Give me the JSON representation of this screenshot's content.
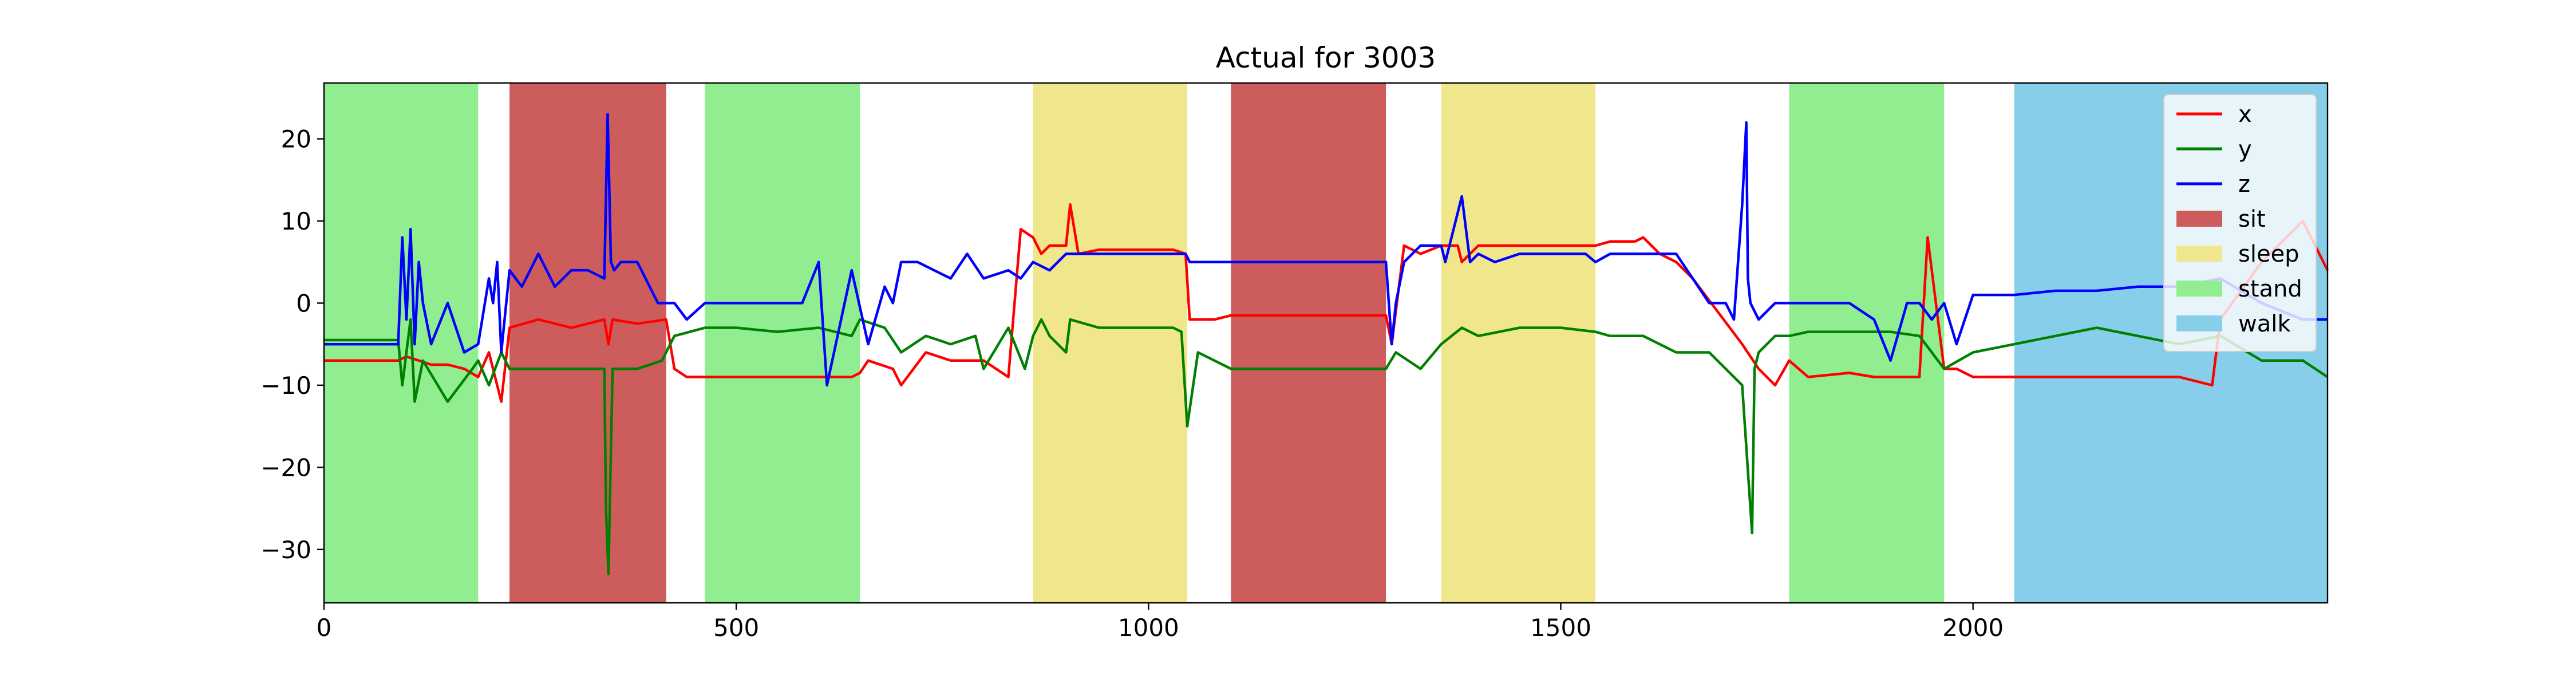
{
  "chart_data": {
    "type": "line",
    "title": "Actual for 3003",
    "xlabel": "",
    "ylabel": "",
    "xlim": [
      0,
      2430
    ],
    "ylim": [
      -36.5,
      26.8
    ],
    "xticks": [
      0,
      500,
      1000,
      1500,
      2000
    ],
    "xtick_labels": [
      "0",
      "500",
      "1000",
      "1500",
      "2000"
    ],
    "yticks": [
      20,
      10,
      0,
      -10,
      -20,
      -30
    ],
    "ytick_labels": [
      "20",
      "10",
      "0",
      "−10",
      "−20",
      "−30"
    ],
    "grid": false,
    "legend_position": "top-right",
    "legend": [
      {
        "label": "x",
        "kind": "line",
        "color": "#ff0000"
      },
      {
        "label": "y",
        "kind": "line",
        "color": "#008000"
      },
      {
        "label": "z",
        "kind": "line",
        "color": "#0000ff"
      },
      {
        "label": "sit",
        "kind": "patch",
        "color": "#cd5c5c"
      },
      {
        "label": "sleep",
        "kind": "patch",
        "color": "#f0e68c"
      },
      {
        "label": "stand",
        "kind": "patch",
        "color": "#90ee90"
      },
      {
        "label": "walk",
        "kind": "patch",
        "color": "#87ceeb"
      }
    ],
    "activity_spans": [
      {
        "activity": "stand",
        "start": 0,
        "end": 187
      },
      {
        "activity": "sit",
        "start": 225,
        "end": 415
      },
      {
        "activity": "stand",
        "start": 462,
        "end": 650
      },
      {
        "activity": "sleep",
        "start": 860,
        "end": 1047
      },
      {
        "activity": "sit",
        "start": 1100,
        "end": 1288
      },
      {
        "activity": "sleep",
        "start": 1355,
        "end": 1542
      },
      {
        "activity": "stand",
        "start": 1777,
        "end": 1965
      },
      {
        "activity": "walk",
        "start": 2050,
        "end": 2430
      }
    ],
    "series": [
      {
        "name": "x",
        "color": "#ff0000",
        "x": [
          0,
          90,
          100,
          115,
          130,
          150,
          170,
          187,
          200,
          215,
          225,
          260,
          300,
          340,
          345,
          350,
          380,
          415,
          425,
          440,
          462,
          500,
          550,
          600,
          640,
          650,
          660,
          690,
          700,
          730,
          760,
          800,
          830,
          845,
          860,
          870,
          880,
          900,
          905,
          915,
          940,
          1000,
          1030,
          1045,
          1050,
          1080,
          1100,
          1200,
          1288,
          1295,
          1310,
          1330,
          1355,
          1375,
          1380,
          1400,
          1450,
          1500,
          1542,
          1560,
          1590,
          1600,
          1610,
          1620,
          1640,
          1660,
          1690,
          1720,
          1740,
          1760,
          1777,
          1800,
          1850,
          1880,
          1900,
          1935,
          1945,
          1965,
          1980,
          2000,
          2050,
          2100,
          2150,
          2200,
          2250,
          2290,
          2300,
          2350,
          2400,
          2410,
          2430
        ],
        "y": [
          -7,
          -7,
          -6.5,
          -7,
          -7.5,
          -7.5,
          -8,
          -9,
          -6,
          -12,
          -3,
          -2,
          -3,
          -2,
          -5,
          -2,
          -2.5,
          -2,
          -8,
          -9,
          -9,
          -9,
          -9,
          -9,
          -9,
          -8.5,
          -7,
          -8,
          -10,
          -6,
          -7,
          -7,
          -9,
          9,
          8,
          6,
          7,
          7,
          12,
          6,
          6.5,
          6.5,
          6.5,
          6,
          -2,
          -2,
          -1.5,
          -1.5,
          -1.5,
          -5,
          7,
          6,
          7,
          7,
          5,
          7,
          7,
          7,
          7,
          7.5,
          7.5,
          8,
          7,
          6,
          5,
          3,
          -1,
          -5,
          -8,
          -10,
          -7,
          -9,
          -8.5,
          -9,
          -9,
          -9,
          8,
          -8,
          -8,
          -9,
          -9,
          -9,
          -9,
          -9,
          -9,
          -10,
          -2,
          5,
          10,
          8,
          4
        ],
        "legend": "x"
      },
      {
        "name": "y",
        "color": "#008000",
        "x": [
          0,
          90,
          95,
          105,
          110,
          120,
          150,
          180,
          187,
          200,
          215,
          225,
          250,
          300,
          340,
          342,
          345,
          350,
          380,
          410,
          415,
          425,
          462,
          500,
          550,
          600,
          640,
          650,
          680,
          700,
          730,
          760,
          790,
          800,
          830,
          850,
          860,
          870,
          880,
          900,
          905,
          940,
          1000,
          1030,
          1040,
          1047,
          1060,
          1100,
          1200,
          1288,
          1300,
          1330,
          1355,
          1380,
          1400,
          1450,
          1500,
          1542,
          1560,
          1600,
          1640,
          1680,
          1700,
          1720,
          1732,
          1735,
          1740,
          1760,
          1777,
          1800,
          1850,
          1900,
          1935,
          1965,
          2000,
          2050,
          2100,
          2150,
          2200,
          2250,
          2300,
          2350,
          2400,
          2430
        ],
        "y": [
          -4.5,
          -4.5,
          -10,
          -2,
          -12,
          -7,
          -12,
          -8,
          -7,
          -10,
          -6,
          -8,
          -8,
          -8,
          -8,
          -25,
          -33,
          -8,
          -8,
          -7,
          -6,
          -4,
          -3,
          -3,
          -3.5,
          -3,
          -4,
          -2,
          -3,
          -6,
          -4,
          -5,
          -4,
          -8,
          -3,
          -8,
          -4,
          -2,
          -4,
          -6,
          -2,
          -3,
          -3,
          -3,
          -3.5,
          -15,
          -6,
          -8,
          -8,
          -8,
          -6,
          -8,
          -5,
          -3,
          -4,
          -3,
          -3,
          -3.5,
          -4,
          -4,
          -6,
          -6,
          -8,
          -10,
          -28,
          -8,
          -6,
          -4,
          -4,
          -3.5,
          -3.5,
          -3.5,
          -4,
          -8,
          -6,
          -5,
          -4,
          -3,
          -4,
          -5,
          -4,
          -7,
          -7,
          -9
        ]
      },
      {
        "name": "z",
        "color": "#0000ff",
        "x": [
          0,
          90,
          95,
          100,
          105,
          110,
          115,
          120,
          130,
          150,
          170,
          187,
          200,
          205,
          210,
          215,
          225,
          240,
          260,
          280,
          300,
          320,
          340,
          344,
          348,
          352,
          360,
          380,
          405,
          415,
          425,
          440,
          462,
          500,
          550,
          580,
          600,
          610,
          640,
          660,
          680,
          690,
          700,
          720,
          740,
          760,
          780,
          800,
          830,
          845,
          860,
          880,
          900,
          920,
          1000,
          1030,
          1045,
          1050,
          1080,
          1100,
          1200,
          1240,
          1288,
          1295,
          1300,
          1310,
          1330,
          1355,
          1360,
          1380,
          1390,
          1400,
          1420,
          1450,
          1500,
          1530,
          1542,
          1560,
          1600,
          1640,
          1680,
          1700,
          1710,
          1720,
          1725,
          1727,
          1730,
          1740,
          1760,
          1777,
          1800,
          1850,
          1880,
          1900,
          1920,
          1935,
          1950,
          1965,
          1980,
          2000,
          2050,
          2100,
          2150,
          2200,
          2250,
          2300,
          2350,
          2400,
          2430
        ],
        "y": [
          -5,
          -5,
          8,
          -2,
          9,
          -5,
          5,
          0,
          -5,
          0,
          -6,
          -5,
          3,
          0,
          5,
          -6,
          4,
          2,
          6,
          2,
          4,
          4,
          3,
          23,
          5,
          4,
          5,
          5,
          0,
          0,
          0,
          -2,
          0,
          0,
          0,
          0,
          5,
          -10,
          4,
          -5,
          2,
          0,
          5,
          5,
          4,
          3,
          6,
          3,
          4,
          3,
          5,
          4,
          6,
          6,
          6,
          6,
          6,
          5,
          5,
          5,
          5,
          5,
          5,
          -5,
          0,
          5,
          7,
          7,
          5,
          13,
          5,
          6,
          5,
          6,
          6,
          6,
          5,
          6,
          6,
          6,
          0,
          0,
          -2,
          12,
          22,
          3,
          0,
          -2,
          0,
          0,
          0,
          0,
          -2,
          -7,
          0,
          0,
          -2,
          0,
          -5,
          1,
          1,
          1.5,
          1.5,
          2,
          2,
          3,
          0,
          -2,
          -2
        ]
      }
    ]
  }
}
